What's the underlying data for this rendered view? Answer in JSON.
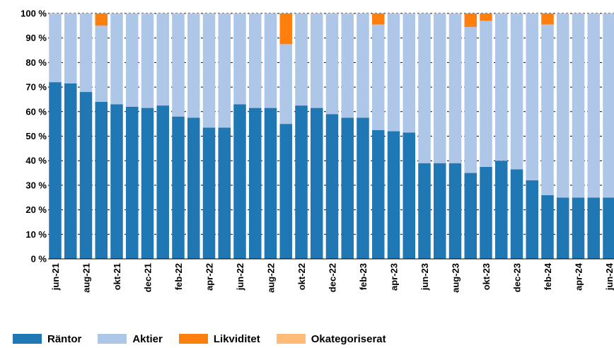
{
  "chart_data": {
    "type": "bar",
    "stacked": true,
    "x": [
      "jun-21",
      "jul-21",
      "aug-21",
      "sep-21",
      "okt-21",
      "nov-21",
      "dec-21",
      "jan-22",
      "feb-22",
      "mar-22",
      "apr-22",
      "maj-22",
      "jun-22",
      "jul-22",
      "aug-22",
      "sep-22",
      "okt-22",
      "nov-22",
      "dec-22",
      "jan-23",
      "feb-23",
      "mar-23",
      "apr-23",
      "maj-23",
      "jun-23",
      "jul-23",
      "aug-23",
      "sep-23",
      "okt-23",
      "nov-23",
      "dec-23",
      "jan-24",
      "feb-24",
      "mar-24",
      "apr-24",
      "maj-24",
      "jun-24"
    ],
    "x_tick_labels": [
      "jun-21",
      "aug-21",
      "okt-21",
      "dec-21",
      "feb-22",
      "apr-22",
      "jun-22",
      "aug-22",
      "okt-22",
      "dec-22",
      "feb-23",
      "apr-23",
      "jun-23",
      "aug-23",
      "okt-23",
      "dec-23",
      "feb-24",
      "apr-24",
      "jun-24"
    ],
    "y_tick_labels": [
      "0 %",
      "10 %",
      "20 %",
      "30 %",
      "40 %",
      "50 %",
      "60 %",
      "70 %",
      "80 %",
      "90 %",
      "100 %"
    ],
    "ylim": [
      0,
      100
    ],
    "grid": "horizontal dashed",
    "legend_position": "bottom",
    "series": [
      {
        "name": "Räntor",
        "color": "#1f77b4",
        "values": [
          72,
          71.5,
          68,
          64,
          63,
          62,
          61.5,
          62.5,
          58,
          57.5,
          53.5,
          53.5,
          63,
          61.5,
          61.5,
          55,
          62.5,
          61.5,
          59,
          57.5,
          57.5,
          52.5,
          52,
          51.5,
          39,
          39,
          39,
          35,
          37.5,
          40,
          36.5,
          32,
          26,
          25,
          25,
          25,
          25
        ]
      },
      {
        "name": "Aktier",
        "color": "#aec7e8",
        "values": [
          28,
          28.5,
          32,
          31,
          37,
          38,
          38.5,
          37.5,
          42,
          42.5,
          46.5,
          46.5,
          37,
          38.5,
          38.5,
          32.5,
          37.5,
          38.5,
          41,
          42.5,
          42.5,
          43,
          48,
          48.5,
          61,
          61,
          61,
          59.5,
          59.5,
          60,
          63.5,
          68,
          69.5,
          75,
          75,
          75,
          75
        ]
      },
      {
        "name": "Likviditet",
        "color": "#ff7f0e",
        "values": [
          0,
          0,
          0,
          5,
          0,
          0,
          0,
          0,
          0,
          0,
          0,
          0,
          0,
          0,
          0,
          12.5,
          0,
          0,
          0,
          0,
          0,
          4.5,
          0,
          0,
          0,
          0,
          0,
          5.5,
          3,
          0,
          0,
          0,
          4.5,
          0,
          0,
          0,
          0
        ]
      },
      {
        "name": "Okategoriserat",
        "color": "#ffbb78",
        "values": [
          0,
          0,
          0,
          0,
          0,
          0,
          0,
          0,
          0,
          0,
          0,
          0,
          0,
          0,
          0,
          0,
          0,
          0,
          0,
          0,
          0,
          0,
          0,
          0,
          0,
          0,
          0,
          0,
          0,
          0,
          0,
          0,
          0,
          0,
          0,
          0,
          0
        ]
      }
    ]
  }
}
